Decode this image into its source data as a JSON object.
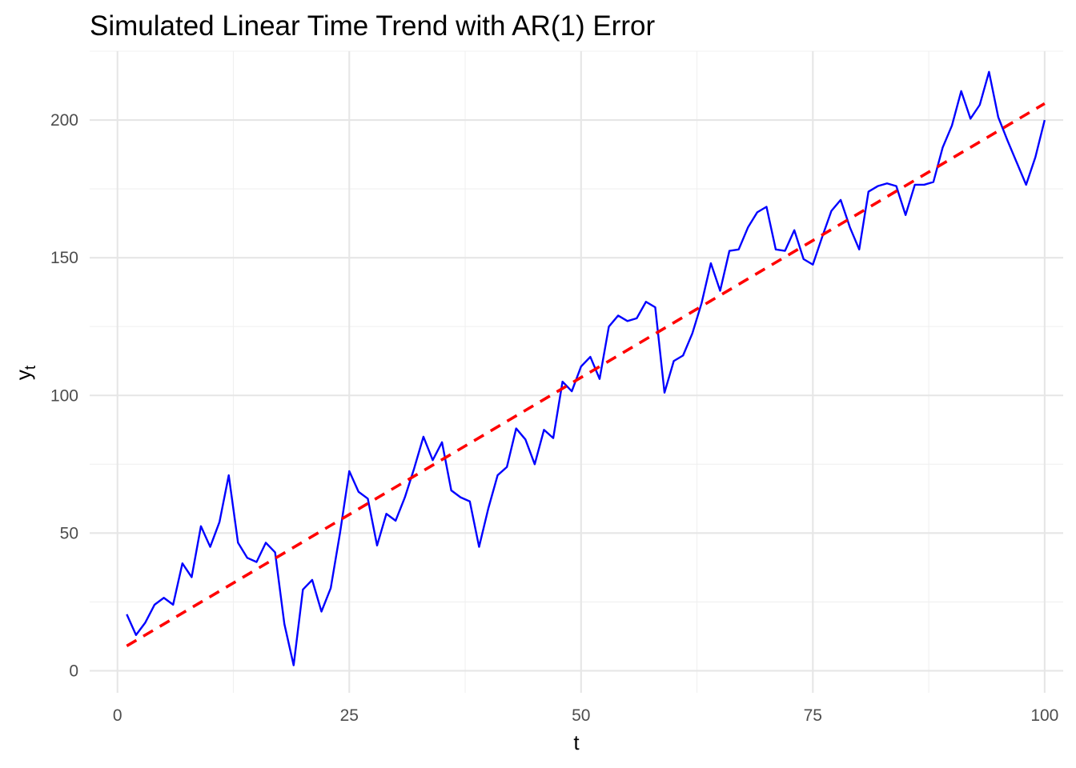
{
  "chart_data": {
    "type": "line",
    "title": "Simulated Linear Time Trend with AR(1) Error",
    "xlabel": "t",
    "ylabel_main": "y",
    "ylabel_subscript": "t",
    "xlim": [
      -3,
      102
    ],
    "ylim": [
      -8,
      225
    ],
    "x_ticks": [
      0,
      25,
      50,
      75,
      100
    ],
    "x_tick_labels": [
      "0",
      "25",
      "50",
      "75",
      "100"
    ],
    "y_ticks": [
      0,
      50,
      100,
      150,
      200
    ],
    "y_tick_labels": [
      "0",
      "50",
      "100",
      "150",
      "200"
    ],
    "grid": true,
    "legend": "none",
    "series": [
      {
        "style": "solid",
        "color": "#0000ff",
        "x": [
          1,
          2,
          3,
          4,
          5,
          6,
          7,
          8,
          9,
          10,
          11,
          12,
          13,
          14,
          15,
          16,
          17,
          18,
          19,
          20,
          21,
          22,
          23,
          24,
          25,
          26,
          27,
          28,
          29,
          30,
          31,
          32,
          33,
          34,
          35,
          36,
          37,
          38,
          39,
          40,
          41,
          42,
          43,
          44,
          45,
          46,
          47,
          48,
          49,
          50,
          51,
          52,
          53,
          54,
          55,
          56,
          57,
          58,
          59,
          60,
          61,
          62,
          63,
          64,
          65,
          66,
          67,
          68,
          69,
          70,
          71,
          72,
          73,
          74,
          75,
          76,
          77,
          78,
          79,
          80,
          81,
          82,
          83,
          84,
          85,
          86,
          87,
          88,
          89,
          90,
          91,
          92,
          93,
          94,
          95,
          96,
          97,
          98,
          99,
          100
        ],
        "y": [
          20.5,
          13,
          17.5,
          24,
          26.5,
          24,
          39,
          34,
          52.5,
          45,
          54,
          71,
          46.5,
          41,
          39.5,
          46.5,
          43,
          17,
          2,
          29.5,
          33,
          21.5,
          30,
          50,
          72.5,
          65,
          62.5,
          45.5,
          57,
          54.5,
          63,
          73.5,
          85,
          76.5,
          83,
          65.5,
          63,
          61.5,
          45,
          59,
          71,
          74,
          88,
          84,
          75,
          87.5,
          84.5,
          105,
          101.5,
          110.5,
          114,
          106,
          125,
          129,
          127,
          128,
          134,
          132,
          101,
          112.5,
          114.5,
          122.5,
          133.5,
          148,
          138,
          152.5,
          153,
          161,
          166.5,
          168.5,
          153,
          152.5,
          160,
          149.5,
          147.5,
          157.5,
          167,
          171,
          161,
          153,
          174,
          176,
          177,
          176,
          165.5,
          176.5,
          176.5,
          177.5,
          190,
          198,
          210.5,
          200.5,
          205.5,
          217.5,
          201,
          192.5,
          184.5,
          176.5,
          186.5,
          200
        ]
      },
      {
        "style": "dashed",
        "color": "#ff0000",
        "x": [
          1,
          100
        ],
        "y": [
          9,
          206
        ]
      }
    ]
  }
}
